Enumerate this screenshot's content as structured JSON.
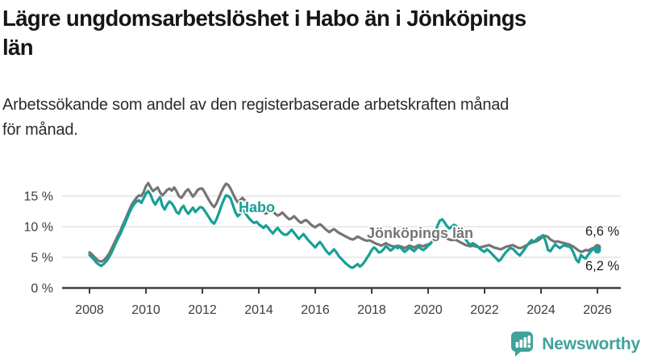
{
  "header": {
    "title": "Lägre ungdomsarbetslöshet i Habo än i Jönköpings län",
    "title_lines": [
      "Lägre ungdomsarbetslöshet i Habo än i Jönköpings",
      "län"
    ],
    "subtitle": "Arbetssökande som andel av den registerbaserade arbetskraften månad för månad.",
    "subtitle_lines": [
      "Arbetssökande som andel av den registerbaserade arbetskraften månad",
      "för månad."
    ]
  },
  "chart_data": {
    "type": "line",
    "unit": "%",
    "x_start_year": 2008,
    "points_per_year": 12,
    "xlim": [
      2008,
      2026.1
    ],
    "ylim": [
      0,
      18
    ],
    "grid": "horizontal",
    "x_tick_years": [
      2008,
      2010,
      2012,
      2014,
      2016,
      2018,
      2020,
      2022,
      2024,
      2026
    ],
    "y_ticks": [
      {
        "value": 0,
        "label": "0 %"
      },
      {
        "value": 5,
        "label": "5 %"
      },
      {
        "value": 10,
        "label": "10 %"
      },
      {
        "value": 15,
        "label": "15 %"
      }
    ],
    "series": [
      {
        "name": "Habo",
        "label_text": "Habo",
        "color": "#16a096",
        "end_label": "6,2 %",
        "last_value": 6.2,
        "values": [
          5.4,
          5.0,
          4.6,
          4.1,
          3.8,
          3.6,
          3.9,
          4.3,
          4.8,
          5.5,
          6.3,
          7.2,
          8.0,
          8.7,
          9.6,
          10.5,
          11.4,
          12.3,
          13.1,
          13.7,
          14.1,
          14.3,
          13.9,
          14.6,
          15.4,
          15.8,
          15.2,
          14.2,
          13.6,
          14.3,
          14.8,
          13.4,
          12.8,
          13.6,
          14.1,
          13.8,
          13.2,
          12.4,
          12.1,
          13.0,
          13.4,
          12.6,
          12.1,
          12.6,
          13.1,
          12.4,
          12.8,
          13.2,
          13.1,
          12.6,
          12.0,
          11.4,
          10.8,
          10.5,
          11.2,
          12.2,
          13.3,
          14.3,
          15.1,
          15.0,
          14.6,
          13.5,
          12.4,
          11.7,
          12.1,
          12.8,
          12.4,
          11.8,
          11.3,
          10.9,
          10.6,
          10.8,
          10.4,
          10.1,
          9.8,
          10.2,
          9.8,
          9.3,
          8.9,
          9.4,
          9.8,
          9.3,
          8.9,
          8.7,
          8.7,
          9.1,
          9.5,
          9.0,
          8.5,
          8.0,
          8.4,
          8.8,
          8.3,
          7.8,
          7.4,
          7.0,
          6.6,
          7.1,
          7.5,
          7.0,
          6.4,
          5.9,
          5.5,
          5.9,
          6.3,
          5.8,
          5.2,
          4.8,
          4.4,
          4.0,
          3.7,
          3.4,
          3.3,
          3.6,
          3.9,
          3.5,
          3.8,
          4.3,
          4.9,
          5.5,
          6.2,
          6.6,
          6.3,
          5.8,
          5.9,
          6.3,
          6.8,
          6.5,
          6.1,
          6.4,
          6.8,
          6.5,
          6.7,
          6.3,
          5.9,
          6.2,
          6.6,
          6.3,
          6.0,
          6.4,
          6.7,
          6.4,
          6.2,
          6.5,
          6.9,
          7.2,
          7.8,
          9.0,
          10.2,
          11.0,
          11.2,
          10.7,
          10.1,
          9.7,
          10.0,
          10.3,
          10.1,
          9.6,
          9.0,
          8.4,
          7.9,
          7.4,
          7.0,
          7.3,
          7.1,
          6.8,
          6.4,
          6.1,
          5.9,
          6.3,
          6.0,
          5.6,
          5.2,
          4.8,
          4.4,
          4.7,
          5.3,
          5.8,
          6.2,
          6.5,
          6.4,
          6.0,
          5.6,
          5.3,
          5.8,
          6.3,
          6.9,
          7.4,
          7.8,
          7.5,
          7.9,
          8.2,
          8.4,
          8.6,
          7.6,
          6.2,
          6.0,
          6.6,
          7.1,
          6.8,
          6.5,
          6.8,
          7.0,
          6.8,
          6.8,
          6.4,
          5.6,
          4.6,
          4.2,
          5.4,
          5.0,
          4.8,
          5.4,
          5.9,
          6.3,
          6.4,
          6.2
        ]
      },
      {
        "name": "Jönköpings län",
        "label_text": "Jönköpings län",
        "color": "#757575",
        "end_label": "6,6 %",
        "last_value": 6.6,
        "values": [
          5.8,
          5.5,
          5.1,
          4.7,
          4.4,
          4.3,
          4.5,
          4.9,
          5.4,
          6.1,
          6.9,
          7.7,
          8.5,
          9.2,
          10.1,
          11.0,
          11.9,
          12.8,
          13.6,
          14.2,
          14.7,
          15.1,
          15.0,
          15.6,
          16.6,
          17.1,
          16.4,
          15.8,
          16.1,
          16.4,
          15.6,
          15.1,
          15.5,
          16.0,
          16.2,
          15.9,
          16.4,
          15.8,
          15.0,
          14.7,
          15.2,
          15.8,
          16.1,
          15.5,
          14.9,
          15.4,
          16.0,
          16.2,
          16.2,
          15.6,
          14.9,
          14.2,
          13.6,
          13.2,
          13.8,
          14.7,
          15.6,
          16.4,
          17.0,
          16.8,
          16.2,
          15.4,
          14.6,
          14.0,
          14.3,
          14.7,
          14.3,
          13.9,
          13.5,
          13.2,
          13.0,
          13.1,
          13.0,
          12.7,
          12.4,
          12.1,
          12.4,
          12.8,
          12.5,
          12.1,
          11.8,
          12.0,
          12.3,
          11.9,
          11.5,
          11.2,
          11.4,
          11.7,
          11.3,
          10.9,
          10.6,
          10.9,
          11.1,
          10.8,
          10.4,
          10.1,
          9.9,
          10.2,
          10.4,
          10.1,
          9.7,
          9.4,
          9.1,
          9.4,
          9.6,
          9.3,
          9.0,
          8.8,
          8.6,
          8.4,
          8.2,
          8.0,
          7.9,
          8.1,
          8.4,
          8.2,
          8.0,
          7.8,
          7.7,
          7.8,
          7.6,
          7.4,
          7.2,
          7.1,
          6.9,
          7.1,
          7.3,
          7.1,
          6.9,
          6.8,
          6.7,
          6.9,
          6.8,
          6.7,
          6.5,
          6.7,
          6.9,
          6.8,
          6.6,
          6.8,
          7.0,
          6.9,
          6.8,
          7.0,
          7.1,
          7.3,
          7.7,
          8.1,
          8.4,
          8.6,
          8.5,
          8.3,
          8.1,
          7.9,
          7.8,
          7.9,
          7.8,
          7.6,
          7.4,
          7.2,
          7.0,
          6.9,
          6.8,
          6.9,
          6.8,
          6.7,
          6.6,
          6.7,
          6.8,
          6.9,
          7.0,
          6.8,
          6.6,
          6.5,
          6.4,
          6.3,
          6.5,
          6.7,
          6.8,
          6.9,
          7.0,
          6.8,
          6.6,
          6.5,
          6.6,
          6.8,
          7.0,
          7.2,
          7.4,
          7.5,
          7.6,
          7.8,
          8.1,
          8.4,
          8.5,
          8.3,
          7.9,
          7.7,
          7.5,
          7.6,
          7.5,
          7.4,
          7.3,
          7.2,
          7.1,
          6.9,
          6.7,
          6.4,
          6.1,
          5.9,
          6.0,
          6.2,
          6.1,
          6.3,
          6.5,
          6.6,
          6.6
        ]
      }
    ],
    "colors": {
      "grid": "#dddddd",
      "axis": "#3d3d3d",
      "tick_text": "#3d3d3d",
      "end_label_text": "#1c1c1c"
    }
  },
  "footer": {
    "brand": "Newsworthy",
    "brand_color": "#3fa29b"
  }
}
